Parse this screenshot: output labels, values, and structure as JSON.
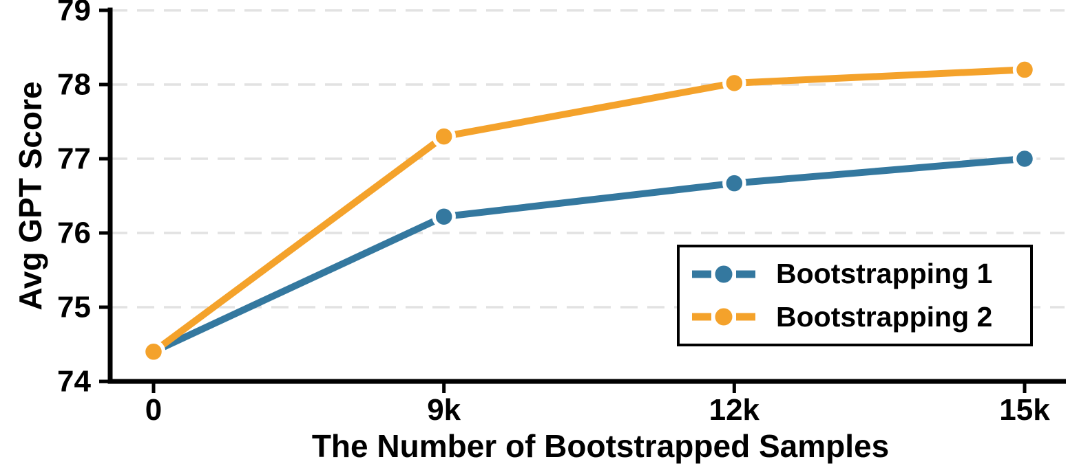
{
  "chart_data": {
    "type": "line",
    "title": "",
    "xlabel": "The Number of Bootstrapped Samples",
    "ylabel": "Avg GPT Score",
    "categories": [
      "0",
      "9k",
      "12k",
      "15k"
    ],
    "series": [
      {
        "name": "Bootstrapping 1",
        "color": "#34789F",
        "values": [
          74.4,
          76.22,
          76.67,
          77.0
        ]
      },
      {
        "name": "Bootstrapping 2",
        "color": "#F4A22B",
        "values": [
          74.4,
          77.3,
          78.02,
          78.2
        ]
      }
    ],
    "ylim": [
      74,
      79
    ],
    "yticks": [
      74,
      75,
      76,
      77,
      78,
      79
    ],
    "grid": "horizontal-dashed",
    "grid_color": "#E2E2E2",
    "axis_color": "#000000",
    "marker_halo_color": "#FFFFFF",
    "legend_position": "lower-right",
    "legend_border_color": "#000000"
  }
}
